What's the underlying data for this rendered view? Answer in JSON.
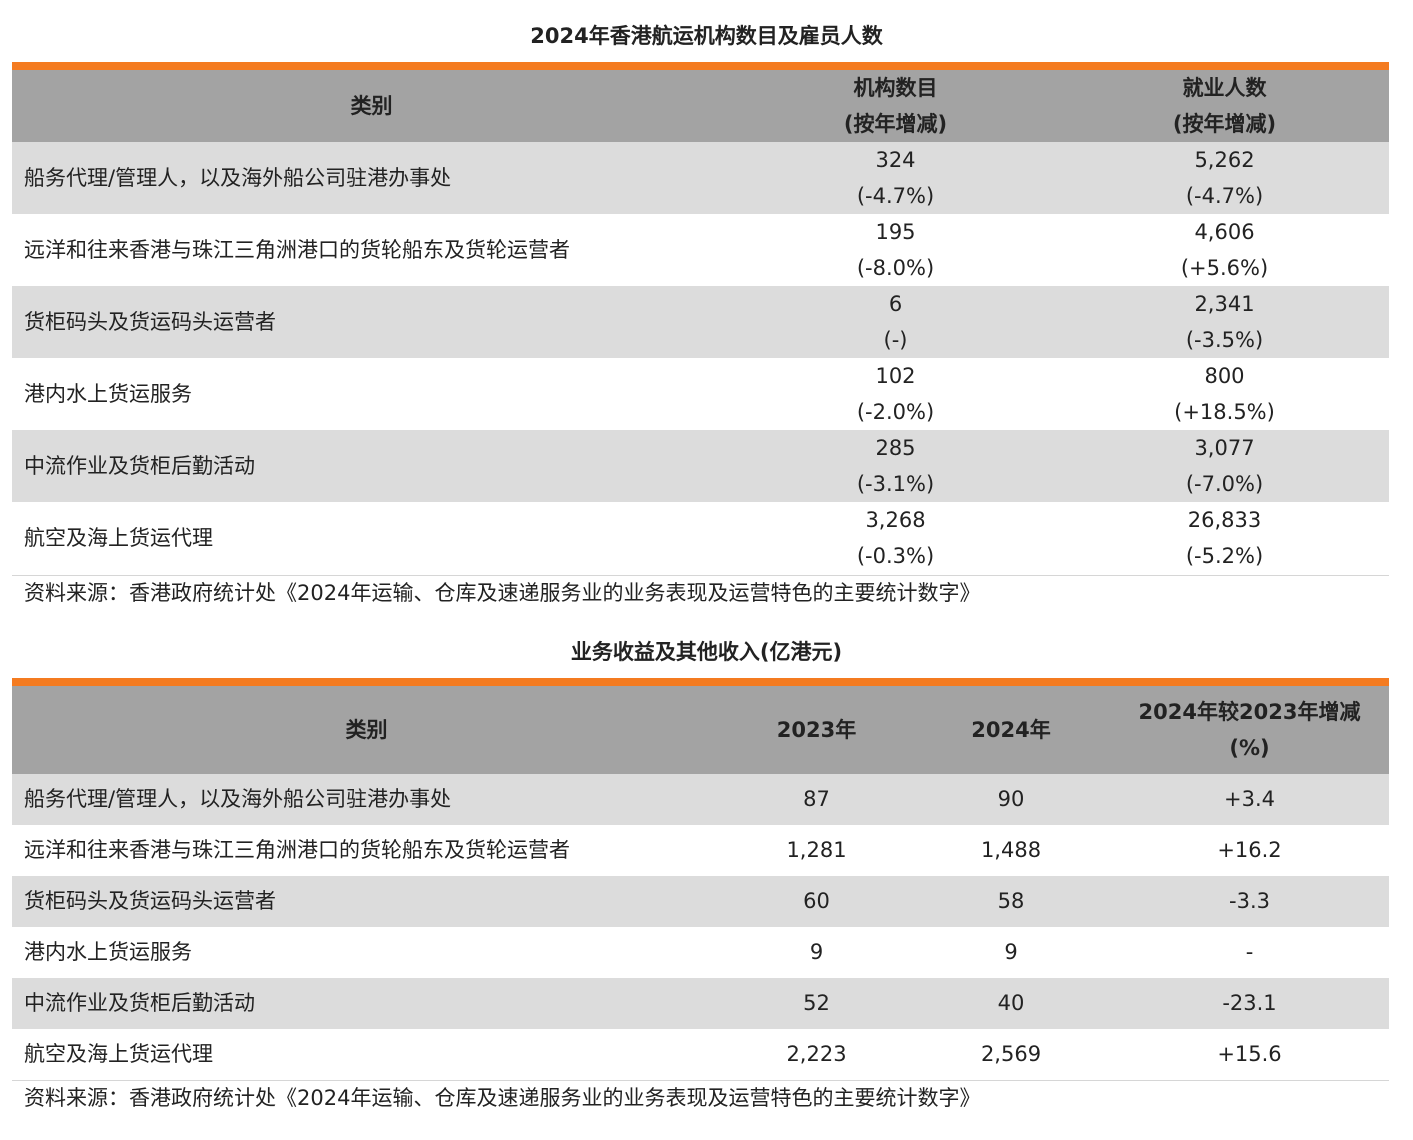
{
  "table1": {
    "title": "2024年香港航运机构数目及雇员人数",
    "headers": {
      "category": "类别",
      "establishments": "机构数目",
      "establishments_sub": "(按年增减)",
      "employment": "就业人数",
      "employment_sub": "(按年增减)"
    },
    "rows": [
      {
        "category": "船务代理/管理人，以及海外船公司驻港办事处",
        "est": "324",
        "est_chg": "(-4.7%)",
        "emp": "5,262",
        "emp_chg": "(-4.7%)"
      },
      {
        "category": "远洋和往来香港与珠江三角洲港口的货轮船东及货轮运营者",
        "est": "195",
        "est_chg": "(-8.0%)",
        "emp": "4,606",
        "emp_chg": "(+5.6%)"
      },
      {
        "category": "货柜码头及货运码头运营者",
        "est": "6",
        "est_chg": "(-)",
        "emp": "2,341",
        "emp_chg": "(-3.5%)"
      },
      {
        "category": "港内水上货运服务",
        "est": "102",
        "est_chg": "(-2.0%)",
        "emp": "800",
        "emp_chg": "(+18.5%)"
      },
      {
        "category": "中流作业及货柜后勤活动",
        "est": "285",
        "est_chg": "(-3.1%)",
        "emp": "3,077",
        "emp_chg": "(-7.0%)"
      },
      {
        "category": "航空及海上货运代理",
        "est": "3,268",
        "est_chg": "(-0.3%)",
        "emp": "26,833",
        "emp_chg": "(-5.2%)"
      }
    ],
    "source": "资料来源：香港政府统计处《2024年运输、仓库及速递服务业的业务表现及运营特色的主要统计数字》"
  },
  "table2": {
    "title": "业务收益及其他收入(亿港元)",
    "headers": {
      "category": "类别",
      "y2023": "2023年",
      "y2024": "2024年",
      "change": "2024年较2023年增减",
      "change_sub": "(%)"
    },
    "rows": [
      {
        "category": "船务代理/管理人，以及海外船公司驻港办事处",
        "y2023": "87",
        "y2024": "90",
        "change": "+3.4"
      },
      {
        "category": "远洋和往来香港与珠江三角洲港口的货轮船东及货轮运营者",
        "y2023": "1,281",
        "y2024": "1,488",
        "change": "+16.2"
      },
      {
        "category": "货柜码头及货运码头运营者",
        "y2023": "60",
        "y2024": "58",
        "change": "-3.3"
      },
      {
        "category": "港内水上货运服务",
        "y2023": "9",
        "y2024": "9",
        "change": "-"
      },
      {
        "category": "中流作业及货柜后勤活动",
        "y2023": "52",
        "y2024": "40",
        "change": "-23.1"
      },
      {
        "category": "航空及海上货运代理",
        "y2023": "2,223",
        "y2024": "2,569",
        "change": "+15.6"
      }
    ],
    "source": "资料来源：香港政府统计处《2024年运输、仓库及速递服务业的业务表现及运营特色的主要统计数字》"
  },
  "colors": {
    "accent_bar": "#f47b20",
    "header_bg": "#a3a3a3",
    "row_shade": "#dcdcdc"
  }
}
